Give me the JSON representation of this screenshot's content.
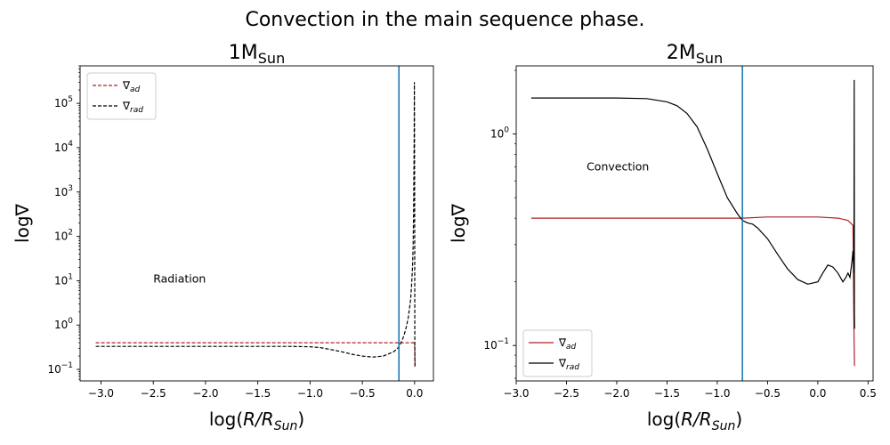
{
  "figure_title": "Convection in the main sequence phase.",
  "chart_data": [
    {
      "type": "line",
      "title": "1M_Sun",
      "title_main": "1M",
      "title_sub": "Sun",
      "xlabel_prefix": "log(",
      "xlabel_var": "R/R",
      "xlabel_sub": "Sun",
      "xlabel_suffix": ")",
      "ylabel": "log∇",
      "xlim": [
        -3.2,
        0.18
      ],
      "yscale": "log",
      "ylim": [
        0.055,
        700000
      ],
      "xticks": [
        -3.0,
        -2.5,
        -2.0,
        -1.5,
        -1.0,
        -0.5,
        0.0
      ],
      "xtick_labels": [
        "−3.0",
        "−2.5",
        "−2.0",
        "−1.5",
        "−1.0",
        "−0.5",
        "0.0"
      ],
      "yticks": [
        {
          "value": 0.1,
          "base": "10",
          "exp": "−1"
        },
        {
          "value": 1,
          "base": "10",
          "exp": "0"
        },
        {
          "value": 10,
          "base": "10",
          "exp": "1"
        },
        {
          "value": 100,
          "base": "10",
          "exp": "2"
        },
        {
          "value": 1000,
          "base": "10",
          "exp": "3"
        },
        {
          "value": 10000,
          "base": "10",
          "exp": "4"
        },
        {
          "value": 100000,
          "base": "10",
          "exp": "5"
        }
      ],
      "vline_x": -0.15,
      "vline_color": "#1f77b4",
      "annotation": {
        "text": "Radiation",
        "x": -2.5,
        "y": 11
      },
      "legend_position": "upper left",
      "series": [
        {
          "name": "∇ad",
          "legend_sym": "∇",
          "legend_sub": "ad",
          "color": "#b22222",
          "dash": "dashed",
          "x": [
            -3.05,
            -2.5,
            -2.0,
            -1.5,
            -1.0,
            -0.5,
            -0.2,
            -0.05,
            -0.01,
            0.0,
            0.005
          ],
          "y": [
            0.4,
            0.4,
            0.4,
            0.4,
            0.4,
            0.4,
            0.4,
            0.4,
            0.4,
            0.38,
            0.13
          ]
        },
        {
          "name": "∇rad",
          "legend_sym": "∇",
          "legend_sub": "rad",
          "color": "#000000",
          "dash": "dashed",
          "x": [
            -3.05,
            -2.5,
            -2.0,
            -1.5,
            -1.2,
            -1.0,
            -0.9,
            -0.8,
            -0.7,
            -0.6,
            -0.5,
            -0.4,
            -0.3,
            -0.2,
            -0.15,
            -0.12,
            -0.1,
            -0.08,
            -0.06,
            -0.04,
            -0.03,
            -0.02,
            -0.015,
            -0.01,
            -0.007,
            -0.004,
            -0.002,
            0.0,
            0.002,
            0.004
          ],
          "y": [
            0.33,
            0.33,
            0.33,
            0.33,
            0.33,
            0.325,
            0.31,
            0.28,
            0.25,
            0.22,
            0.2,
            0.19,
            0.2,
            0.25,
            0.32,
            0.45,
            0.6,
            0.9,
            1.5,
            3.5,
            7,
            20,
            50,
            300,
            2000,
            20000,
            300000,
            1000,
            0.15,
            0.11
          ]
        }
      ]
    },
    {
      "type": "line",
      "title": "2M_Sun",
      "title_main": "2M",
      "title_sub": "Sun",
      "xlabel_prefix": "log(",
      "xlabel_var": "R/R",
      "xlabel_sub": "Sun",
      "xlabel_suffix": ")",
      "ylabel": "log∇",
      "xlim": [
        -3.0,
        0.55
      ],
      "yscale": "log",
      "ylim": [
        0.068,
        2.1
      ],
      "xticks": [
        -3.0,
        -2.5,
        -2.0,
        -1.5,
        -1.0,
        -0.5,
        0.0,
        0.5
      ],
      "xtick_labels": [
        "−3.0",
        "−2.5",
        "−2.0",
        "−1.5",
        "−1.0",
        "−0.5",
        "0.0",
        "0.5"
      ],
      "yticks": [
        {
          "value": 0.1,
          "base": "10",
          "exp": "−1"
        },
        {
          "value": 1,
          "base": "10",
          "exp": "0"
        }
      ],
      "vline_x": -0.75,
      "vline_color": "#1f77b4",
      "annotation": {
        "text": "Convection",
        "x": -2.3,
        "y": 0.7
      },
      "legend_position": "lower left",
      "series": [
        {
          "name": "∇ad",
          "legend_sym": "∇",
          "legend_sub": "ad",
          "color": "#b22222",
          "dash": "solid",
          "x": [
            -2.85,
            -2.5,
            -2.0,
            -1.5,
            -1.0,
            -0.75,
            -0.5,
            0.0,
            0.2,
            0.3,
            0.35,
            0.36,
            0.365
          ],
          "y": [
            0.4,
            0.4,
            0.4,
            0.4,
            0.4,
            0.4,
            0.405,
            0.405,
            0.4,
            0.39,
            0.37,
            0.12,
            0.08
          ]
        },
        {
          "name": "∇rad",
          "legend_sym": "∇",
          "legend_sub": "rad",
          "color": "#000000",
          "dash": "solid",
          "x": [
            -2.85,
            -2.5,
            -2.0,
            -1.7,
            -1.5,
            -1.4,
            -1.3,
            -1.2,
            -1.1,
            -1.0,
            -0.9,
            -0.8,
            -0.75,
            -0.7,
            -0.65,
            -0.6,
            -0.5,
            -0.4,
            -0.3,
            -0.2,
            -0.1,
            0.0,
            0.05,
            0.1,
            0.15,
            0.2,
            0.25,
            0.28,
            0.3,
            0.32,
            0.34,
            0.35,
            0.355,
            0.36,
            0.362,
            0.364,
            0.366
          ],
          "y": [
            1.48,
            1.48,
            1.48,
            1.47,
            1.42,
            1.36,
            1.25,
            1.08,
            0.85,
            0.65,
            0.5,
            0.42,
            0.39,
            0.38,
            0.375,
            0.36,
            0.32,
            0.27,
            0.23,
            0.205,
            0.195,
            0.2,
            0.22,
            0.24,
            0.235,
            0.22,
            0.2,
            0.21,
            0.22,
            0.21,
            0.25,
            0.28,
            0.25,
            0.22,
            1.8,
            0.14,
            0.12
          ]
        }
      ]
    }
  ]
}
